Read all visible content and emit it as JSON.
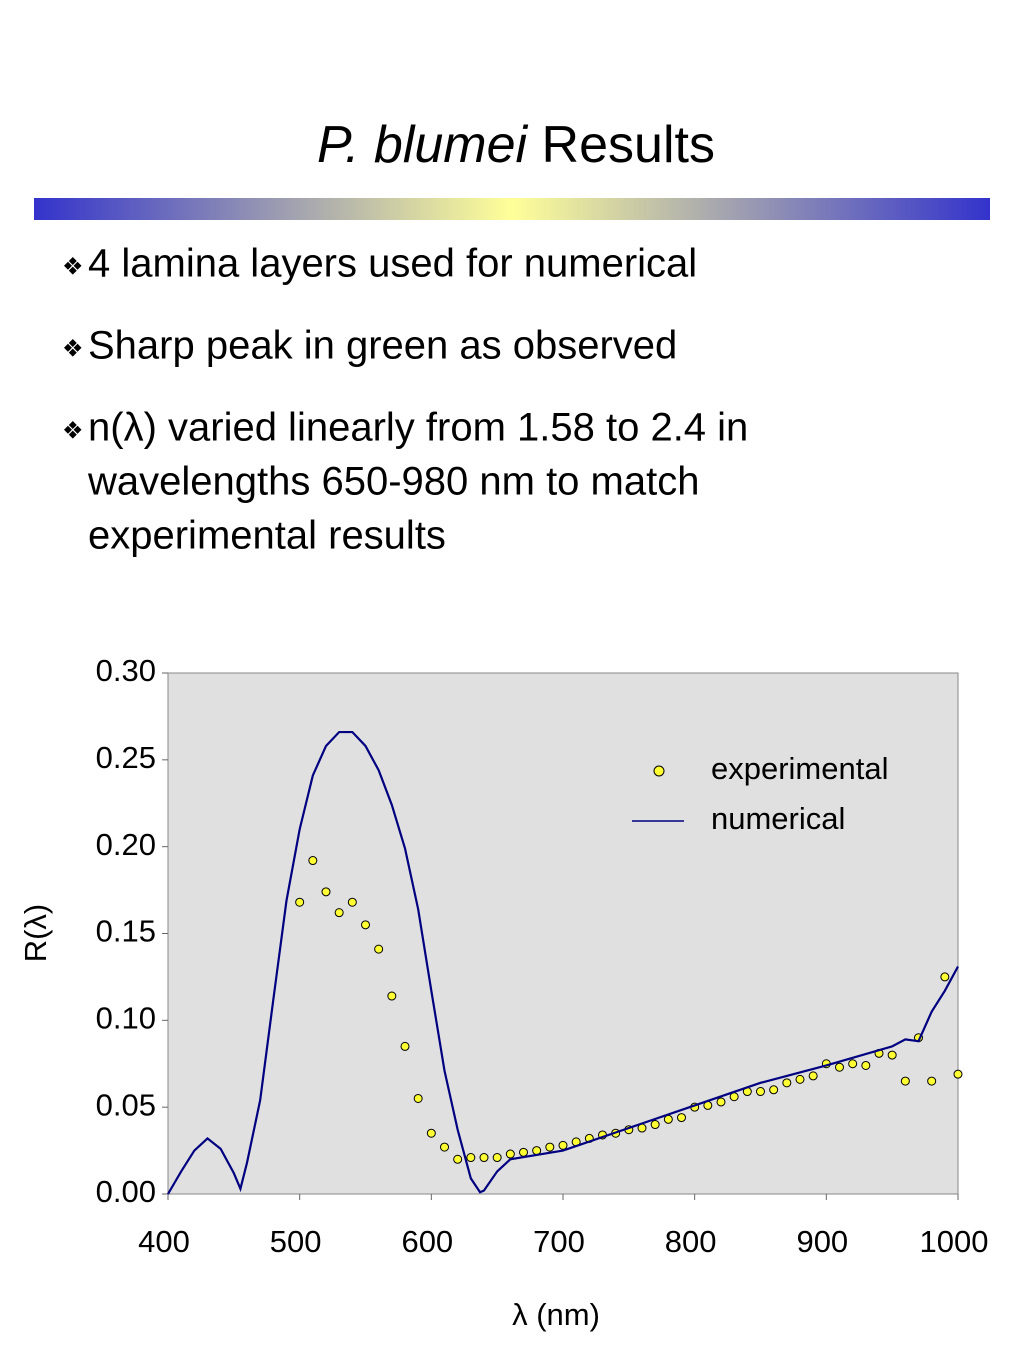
{
  "title": {
    "italic": "P. blumei",
    "rest": "Results"
  },
  "bullets": [
    [
      "4 lamina layers used for numerical"
    ],
    [
      "Sharp peak in green as observed"
    ],
    [
      "n(λ) varied linearly from 1.58 to 2.4 in",
      "wavelengths 650-980 nm to match",
      "experimental results"
    ]
  ],
  "chart_data": {
    "type": "line",
    "xlabel": "λ (nm)",
    "ylabel": "R(λ)",
    "xlim": [
      400,
      1000
    ],
    "xticks": [
      400,
      500,
      600,
      700,
      800,
      900,
      1000
    ],
    "ylim": [
      0,
      0.3
    ],
    "yticks": [
      {
        "value": 0,
        "label": "0.00"
      },
      0.05,
      {
        "value": 0.1,
        "label": "0.10"
      },
      0.15,
      {
        "value": 0.2,
        "label": "0.20"
      },
      0.25,
      {
        "value": 0.3,
        "label": "0.30"
      }
    ],
    "legend": "upper right",
    "grid": false,
    "series": [
      {
        "name": "experimental",
        "type": "scatter",
        "color": "#ffff33",
        "x": [
          500,
          510,
          520,
          530,
          540,
          550,
          560,
          570,
          580,
          590,
          600,
          610,
          620,
          630,
          640,
          650,
          660,
          670,
          680,
          690,
          700,
          710,
          720,
          730,
          740,
          750,
          760,
          770,
          780,
          790,
          800,
          810,
          820,
          830,
          840,
          850,
          860,
          870,
          880,
          890,
          900,
          910,
          920,
          930,
          940,
          950,
          960,
          970,
          980,
          990,
          1000
        ],
        "values": [
          0.168,
          0.192,
          0.174,
          0.162,
          0.168,
          0.155,
          0.141,
          0.114,
          0.085,
          0.055,
          0.035,
          0.027,
          0.02,
          0.021,
          0.021,
          0.021,
          0.023,
          0.024,
          0.025,
          0.027,
          0.028,
          0.03,
          0.032,
          0.034,
          0.035,
          0.037,
          0.038,
          0.04,
          0.043,
          0.044,
          0.05,
          0.051,
          0.053,
          0.056,
          0.059,
          0.059,
          0.06,
          0.064,
          0.066,
          0.068,
          0.075,
          0.073,
          0.075,
          0.074,
          0.081,
          0.08,
          0.065,
          0.09,
          0.065,
          0.125,
          0.069
        ]
      },
      {
        "name": "numerical",
        "type": "line",
        "color": "#000080",
        "x": [
          400,
          410,
          420,
          430,
          440,
          450,
          455,
          460,
          470,
          480,
          490,
          500,
          510,
          520,
          530,
          540,
          550,
          560,
          570,
          580,
          590,
          600,
          610,
          620,
          630,
          637,
          640,
          650,
          660,
          700,
          750,
          800,
          850,
          900,
          950,
          960,
          970,
          980,
          990,
          1000
        ],
        "values": [
          0.0,
          0.013,
          0.025,
          0.032,
          0.026,
          0.012,
          0.003,
          0.018,
          0.054,
          0.112,
          0.169,
          0.21,
          0.241,
          0.258,
          0.266,
          0.266,
          0.258,
          0.244,
          0.224,
          0.199,
          0.164,
          0.117,
          0.071,
          0.037,
          0.009,
          0.001,
          0.002,
          0.013,
          0.02,
          0.025,
          0.038,
          0.051,
          0.064,
          0.074,
          0.085,
          0.089,
          0.088,
          0.105,
          0.117,
          0.131
        ]
      }
    ]
  }
}
